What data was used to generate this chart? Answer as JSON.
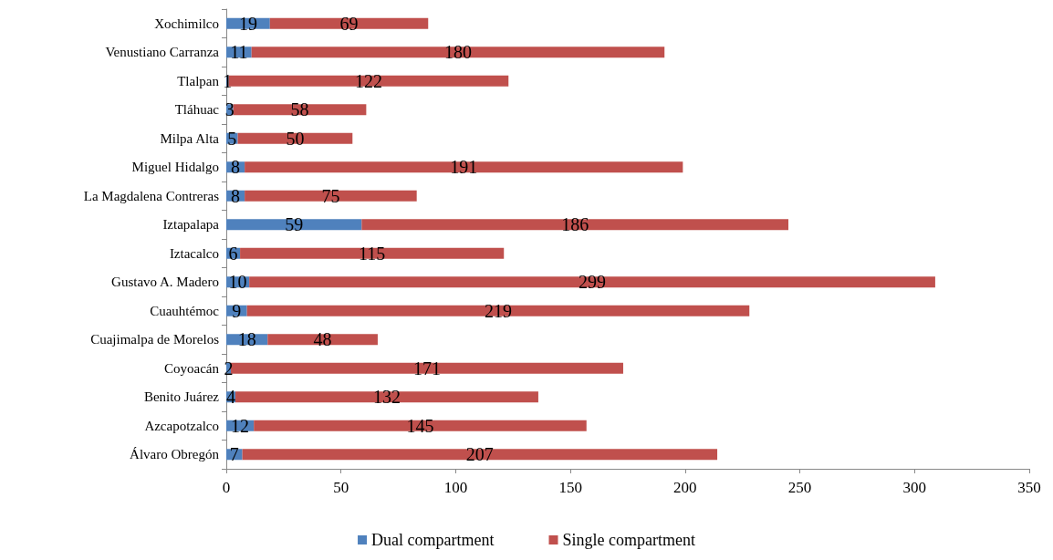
{
  "chart_data": {
    "type": "bar",
    "orientation": "horizontal",
    "stacked": true,
    "data_labels": true,
    "grid": false,
    "legend": "bottom",
    "categories": [
      "Xochimilco",
      "Venustiano Carranza",
      "Tlalpan",
      "Tláhuac",
      "Milpa Alta",
      "Miguel Hidalgo",
      "La Magdalena Contreras",
      "Iztapalapa",
      "Iztacalco",
      "Gustavo A. Madero",
      "Cuauhtémoc",
      "Cuajimalpa de Morelos",
      "Coyoacán",
      "Benito Juárez",
      "Azcapotzalco",
      "Álvaro Obregón"
    ],
    "series": [
      {
        "name": "Dual compartment",
        "color": "#4f81bd",
        "values": [
          19,
          11,
          1,
          3,
          5,
          8,
          8,
          59,
          6,
          10,
          9,
          18,
          2,
          4,
          12,
          7
        ]
      },
      {
        "name": "Single compartment",
        "color": "#c0504d",
        "values": [
          69,
          180,
          122,
          58,
          50,
          191,
          75,
          186,
          115,
          299,
          219,
          48,
          171,
          132,
          145,
          207
        ]
      }
    ],
    "xlim": [
      0,
      350
    ],
    "xticks": [
      0,
      50,
      100,
      150,
      200,
      250,
      300,
      350
    ]
  }
}
